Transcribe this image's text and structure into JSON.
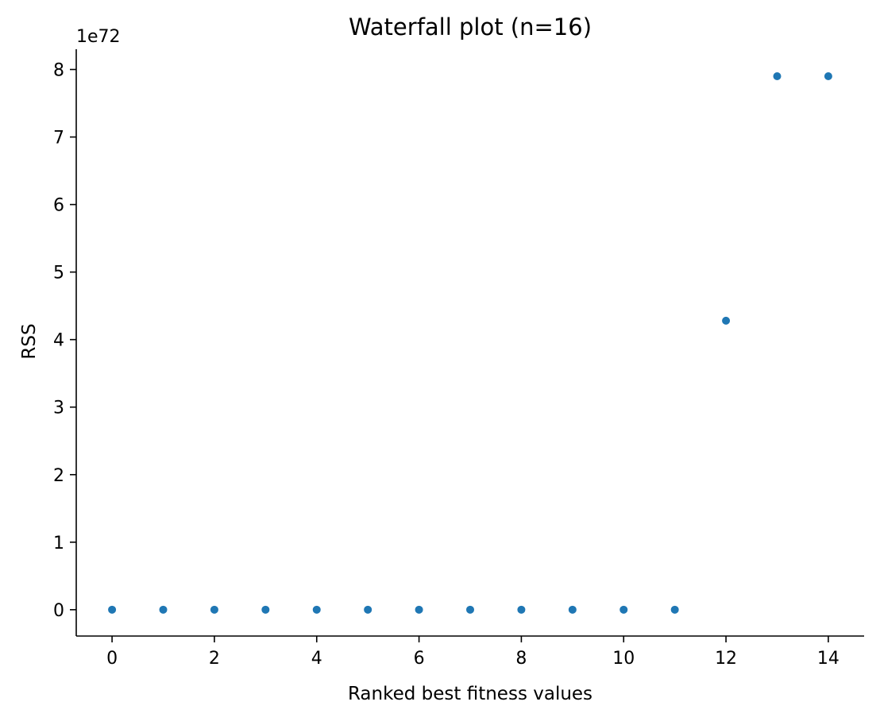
{
  "chart_data": {
    "type": "scatter",
    "title": "Waterfall plot (n=16)",
    "xlabel": "Ranked best fitness values",
    "ylabel": "RSS",
    "y_offset_label": "1e72",
    "xlim": [
      -0.7,
      14.7
    ],
    "ylim": [
      -0.39,
      8.3
    ],
    "x_ticks": [
      0,
      2,
      4,
      6,
      8,
      10,
      12,
      14
    ],
    "y_ticks": [
      0,
      1,
      2,
      3,
      4,
      5,
      6,
      7,
      8
    ],
    "grid": false,
    "marker_color": "#1f77b4",
    "series": [
      {
        "x": [
          0,
          1,
          2,
          3,
          4,
          5,
          6,
          7,
          8,
          9,
          10,
          11,
          12,
          13,
          14
        ],
        "y": [
          0,
          0,
          0,
          0,
          0,
          0,
          0,
          0,
          0,
          0,
          0,
          0,
          4.28,
          7.9,
          7.9
        ]
      }
    ]
  }
}
